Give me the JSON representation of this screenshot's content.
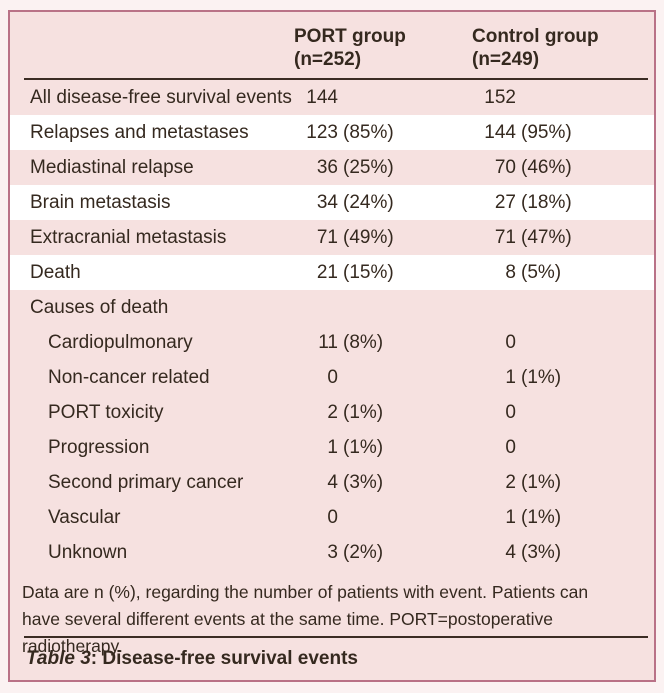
{
  "colors": {
    "page": "#fbf2f2",
    "bg": "#f6e1e0",
    "row": "#ffffff",
    "border": "#b97287",
    "rule": "#3b2c24",
    "text": "#35291f"
  },
  "table": {
    "columns": [
      {
        "label": "PORT group",
        "n": "(n=252)"
      },
      {
        "label": "Control group",
        "n": "(n=249)"
      }
    ],
    "rows": [
      {
        "label": "All disease-free survival events",
        "port_n": "144",
        "port_pct": "",
        "control_n": "152",
        "control_pct": "",
        "shade": "pink",
        "indent": false
      },
      {
        "label": "Relapses and metastases",
        "port_n": "123",
        "port_pct": "(85%)",
        "control_n": "144",
        "control_pct": "(95%)",
        "shade": "white",
        "indent": false
      },
      {
        "label": "Mediastinal relapse",
        "port_n": "36",
        "port_pct": "(25%)",
        "control_n": "70",
        "control_pct": "(46%)",
        "shade": "pink",
        "indent": false
      },
      {
        "label": "Brain metastasis",
        "port_n": "34",
        "port_pct": "(24%)",
        "control_n": "27",
        "control_pct": "(18%)",
        "shade": "white",
        "indent": false
      },
      {
        "label": "Extracranial metastasis",
        "port_n": "71",
        "port_pct": "(49%)",
        "control_n": "71",
        "control_pct": "(47%)",
        "shade": "pink",
        "indent": false
      },
      {
        "label": "Death",
        "port_n": "21",
        "port_pct": "(15%)",
        "control_n": "8",
        "control_pct": "(5%)",
        "shade": "white",
        "indent": false
      },
      {
        "label": "Causes of death",
        "port_n": "",
        "port_pct": "",
        "control_n": "",
        "control_pct": "",
        "shade": "pink",
        "indent": false
      },
      {
        "label": "Cardiopulmonary",
        "port_n": "11",
        "port_pct": "(8%)",
        "control_n": "0",
        "control_pct": "",
        "shade": "pink",
        "indent": true
      },
      {
        "label": "Non-cancer related",
        "port_n": "0",
        "port_pct": "",
        "control_n": "1",
        "control_pct": "(1%)",
        "shade": "pink",
        "indent": true
      },
      {
        "label": "PORT toxicity",
        "port_n": "2",
        "port_pct": "(1%)",
        "control_n": "0",
        "control_pct": "",
        "shade": "pink",
        "indent": true
      },
      {
        "label": "Progression",
        "port_n": "1",
        "port_pct": "(1%)",
        "control_n": "0",
        "control_pct": "",
        "shade": "pink",
        "indent": true
      },
      {
        "label": "Second primary cancer",
        "port_n": "4",
        "port_pct": "(3%)",
        "control_n": "2",
        "control_pct": "(1%)",
        "shade": "pink",
        "indent": true
      },
      {
        "label": "Vascular",
        "port_n": "0",
        "port_pct": "",
        "control_n": "1",
        "control_pct": "(1%)",
        "shade": "pink",
        "indent": true
      },
      {
        "label": "Unknown",
        "port_n": "3",
        "port_pct": "(2%)",
        "control_n": "4",
        "control_pct": "(3%)",
        "shade": "pink",
        "indent": true
      }
    ],
    "footnote": "Data are n (%), regarding the number of patients with event. Patients can have several different events at the same time. PORT=postoperative radiotherapy.",
    "caption_label": "Table 3",
    "caption_separator": ": ",
    "caption_title": "Disease-free survival events"
  }
}
